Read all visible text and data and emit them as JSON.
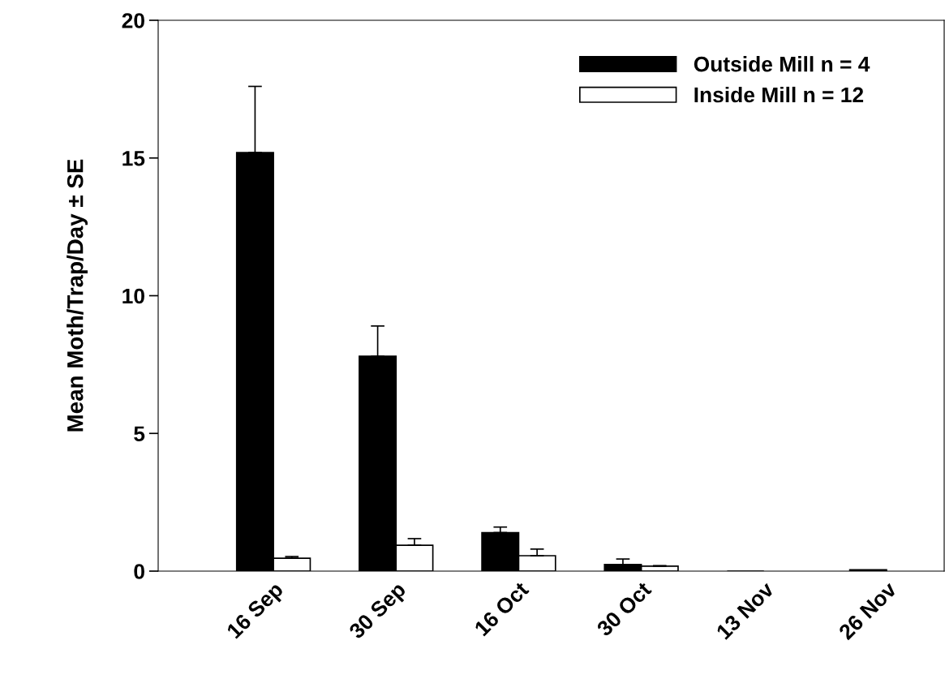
{
  "chart_data": {
    "type": "bar",
    "ylabel": "Mean Moth/Trap/Day ± SE",
    "categories": [
      "16 Sep",
      "30 Sep",
      "16 Oct",
      "30 Oct",
      "13 Nov",
      "26 Nov"
    ],
    "series": [
      {
        "name": "Outside Mill n = 4",
        "color": "#000000",
        "values": [
          15.2,
          7.8,
          1.4,
          0.24,
          0,
          0.05
        ],
        "errors": [
          [
            15.2,
            17.6
          ],
          [
            7.8,
            8.9
          ],
          [
            1.4,
            1.6
          ],
          [
            0.24,
            0.44
          ],
          null,
          null
        ]
      },
      {
        "name": "Inside Mill n = 12",
        "color": "#ffffff",
        "values": [
          0.47,
          0.94,
          0.56,
          0.18,
          null,
          null
        ],
        "errors": [
          [
            0.47,
            0.53
          ],
          [
            0.94,
            1.18
          ],
          [
            0.56,
            0.8
          ],
          [
            0.18,
            0.2
          ],
          null,
          null
        ]
      }
    ],
    "ylim": [
      0,
      20
    ],
    "yticks": [
      0,
      5,
      10,
      15,
      20
    ],
    "legend": "top right"
  }
}
